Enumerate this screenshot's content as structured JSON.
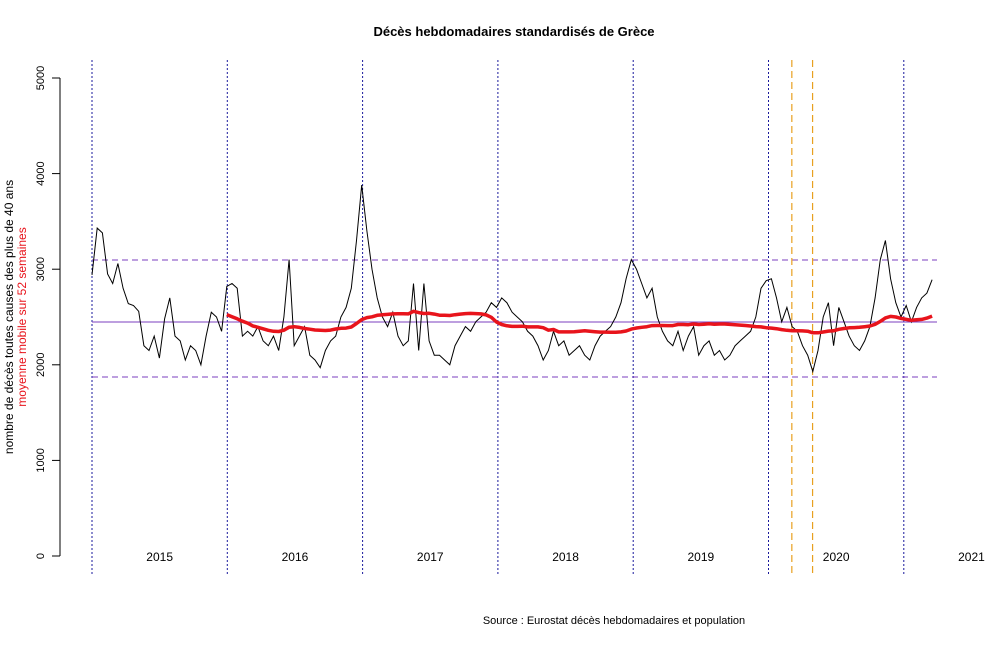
{
  "chart_data": {
    "type": "line",
    "title": "Décès hebdomadaires standardisés de Grèce",
    "ylabel": "nombre de décès toutes causes des plus de 40 ans",
    "ylabel_secondary": "moyenne mobile sur 52 semaines",
    "source": "Source : Eurostat décès hebdomadaires et population",
    "ylim": [
      0,
      5000
    ],
    "yticks": [
      "0",
      "1000",
      "2000",
      "3000",
      "4000",
      "5000"
    ],
    "year_labels": [
      "2015",
      "2016",
      "2017",
      "2018",
      "2019",
      "2020",
      "2021"
    ],
    "x_start": "2015-W01",
    "x_step_weeks": 2,
    "grid": false,
    "colors": {
      "weekly": "#000000",
      "moving_average": "#e8141c",
      "mean_line": "#7b3fbf",
      "band_lines": "#7b3fbf",
      "year_lines": "#1a1a9c",
      "lockdown_lines": "#e8a020"
    },
    "reference_lines": {
      "mean": 2448,
      "upper": 3096,
      "lower": 1872
    },
    "lockdown_markers": [
      "2020-W10",
      "2020-W18"
    ],
    "series": [
      {
        "name": "",
        "role": "weekly",
        "values": [
          2940,
          3430,
          3380,
          2950,
          2850,
          3060,
          2800,
          2640,
          2620,
          2560,
          2200,
          2150,
          2300,
          2070,
          2480,
          2700,
          2300,
          2250,
          2050,
          2200,
          2150,
          2000,
          2300,
          2550,
          2500,
          2350,
          2820,
          2850,
          2800,
          2300,
          2350,
          2300,
          2400,
          2250,
          2200,
          2300,
          2150,
          2500,
          3100,
          2200,
          2300,
          2400,
          2100,
          2050,
          1970,
          2150,
          2250,
          2300,
          2500,
          2600,
          2800,
          3300,
          3880,
          3400,
          3000,
          2700,
          2500,
          2400,
          2550,
          2300,
          2200,
          2250,
          2850,
          2150,
          2850,
          2250,
          2100,
          2100,
          2050,
          2000,
          2200,
          2300,
          2400,
          2350,
          2450,
          2500,
          2550,
          2650,
          2600,
          2700,
          2650,
          2550,
          2500,
          2450,
          2350,
          2300,
          2200,
          2050,
          2150,
          2350,
          2200,
          2250,
          2100,
          2150,
          2200,
          2100,
          2050,
          2200,
          2300,
          2350,
          2400,
          2500,
          2650,
          2900,
          3100,
          3000,
          2850,
          2700,
          2800,
          2500,
          2350,
          2250,
          2200,
          2350,
          2150,
          2300,
          2400,
          2100,
          2200,
          2250,
          2100,
          2150,
          2050,
          2100,
          2200,
          2250,
          2300,
          2350,
          2500,
          2800,
          2880,
          2900,
          2700,
          2450,
          2600,
          2400,
          2350,
          2200,
          2100,
          1930,
          2150,
          2500,
          2650,
          2200,
          2600,
          2450,
          2300,
          2200,
          2150,
          2250,
          2400,
          2700,
          3100,
          3300,
          2900,
          2650,
          2500,
          2620,
          2450,
          2600,
          2700,
          2750,
          2890
        ]
      },
      {
        "name": "moyenne mobile sur 52 semaines",
        "role": "moving_average",
        "window_weeks": 52
      }
    ]
  }
}
